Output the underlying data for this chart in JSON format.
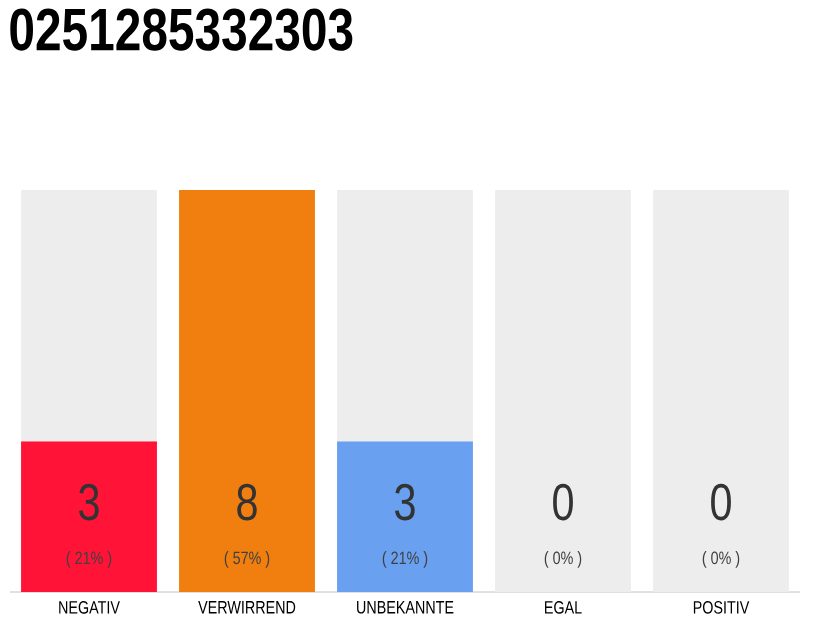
{
  "chart_data": {
    "type": "bar",
    "title": "0251285332303",
    "stacked": true,
    "categories": [
      "NEGATIV",
      "VERWIRREND",
      "UNBEKANNTE",
      "EGAL",
      "POSITIV"
    ],
    "series": [
      {
        "colors": [
          "#ff1438",
          "#f17f0f",
          "#69a1f0",
          "#ededed",
          "#ededed"
        ],
        "values": [
          3,
          8,
          3,
          0,
          0
        ],
        "value_labels": [
          "3",
          "8",
          "3",
          null,
          null
        ]
      },
      {
        "color": "#ededed",
        "values": [
          5,
          0,
          5,
          8,
          8
        ]
      }
    ],
    "annotations": [
      "( 21% )",
      "( 57% )",
      "( 21% )",
      "( 0% )",
      "( 0% )",
      "0",
      "0"
    ]
  }
}
